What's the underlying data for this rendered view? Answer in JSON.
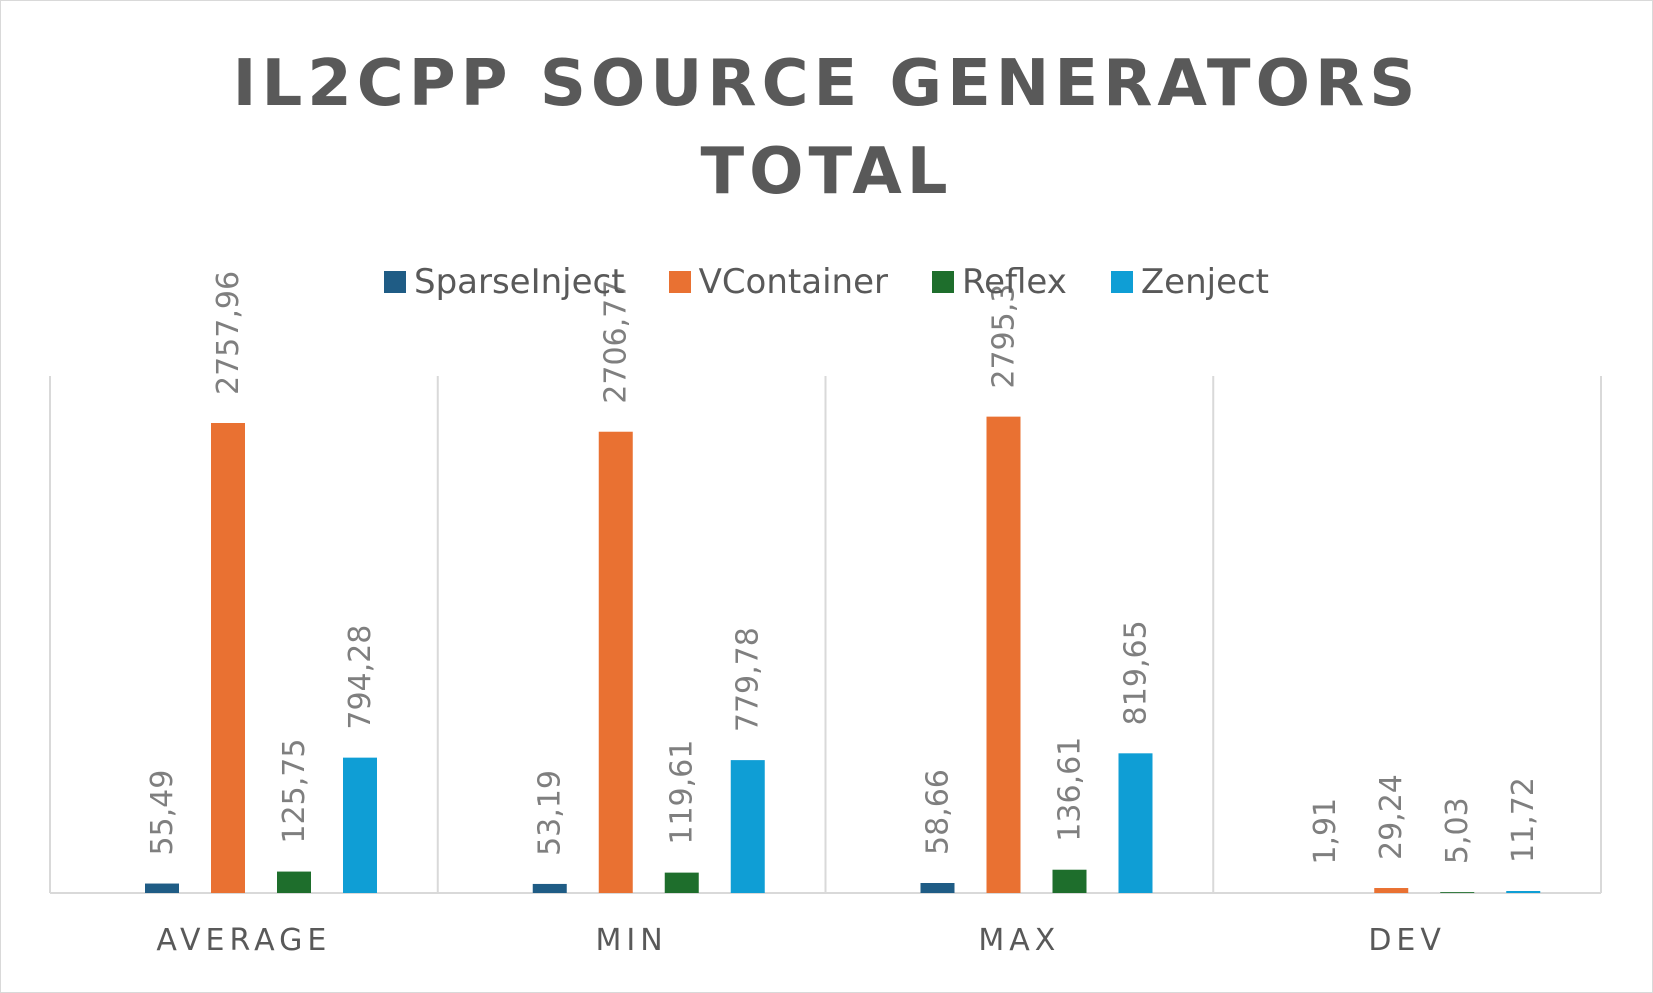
{
  "chart_data": {
    "type": "bar",
    "title_lines": [
      "IL2CPP SOURCE GENERATORS",
      "TOTAL"
    ],
    "categories": [
      "AVERAGE",
      "MIN",
      "MAX",
      "DEV"
    ],
    "series": [
      {
        "name": "SparseInject",
        "color": "#1f5c85",
        "values": [
          55.49,
          53.19,
          58.66,
          1.91
        ],
        "labels": [
          "55,49",
          "53,19",
          "58,66",
          "1,91"
        ]
      },
      {
        "name": "VContainer",
        "color": "#e97132",
        "values": [
          2757.96,
          2706.77,
          2795.3,
          29.24
        ],
        "labels": [
          "2757,96",
          "2706,77",
          "2795,3",
          "29,24"
        ]
      },
      {
        "name": "Reflex",
        "color": "#1e6e2c",
        "values": [
          125.75,
          119.61,
          136.61,
          5.03
        ],
        "labels": [
          "125,75",
          "119,61",
          "136,61",
          "5,03"
        ]
      },
      {
        "name": "Zenject",
        "color": "#0f9ed5",
        "values": [
          794.28,
          779.78,
          819.65,
          11.72
        ],
        "labels": [
          "794,28",
          "779,78",
          "819,65",
          "11,72"
        ]
      }
    ],
    "ylim": [
      0,
      3000
    ],
    "legend_position": "top",
    "grid": "vertical category separators"
  }
}
